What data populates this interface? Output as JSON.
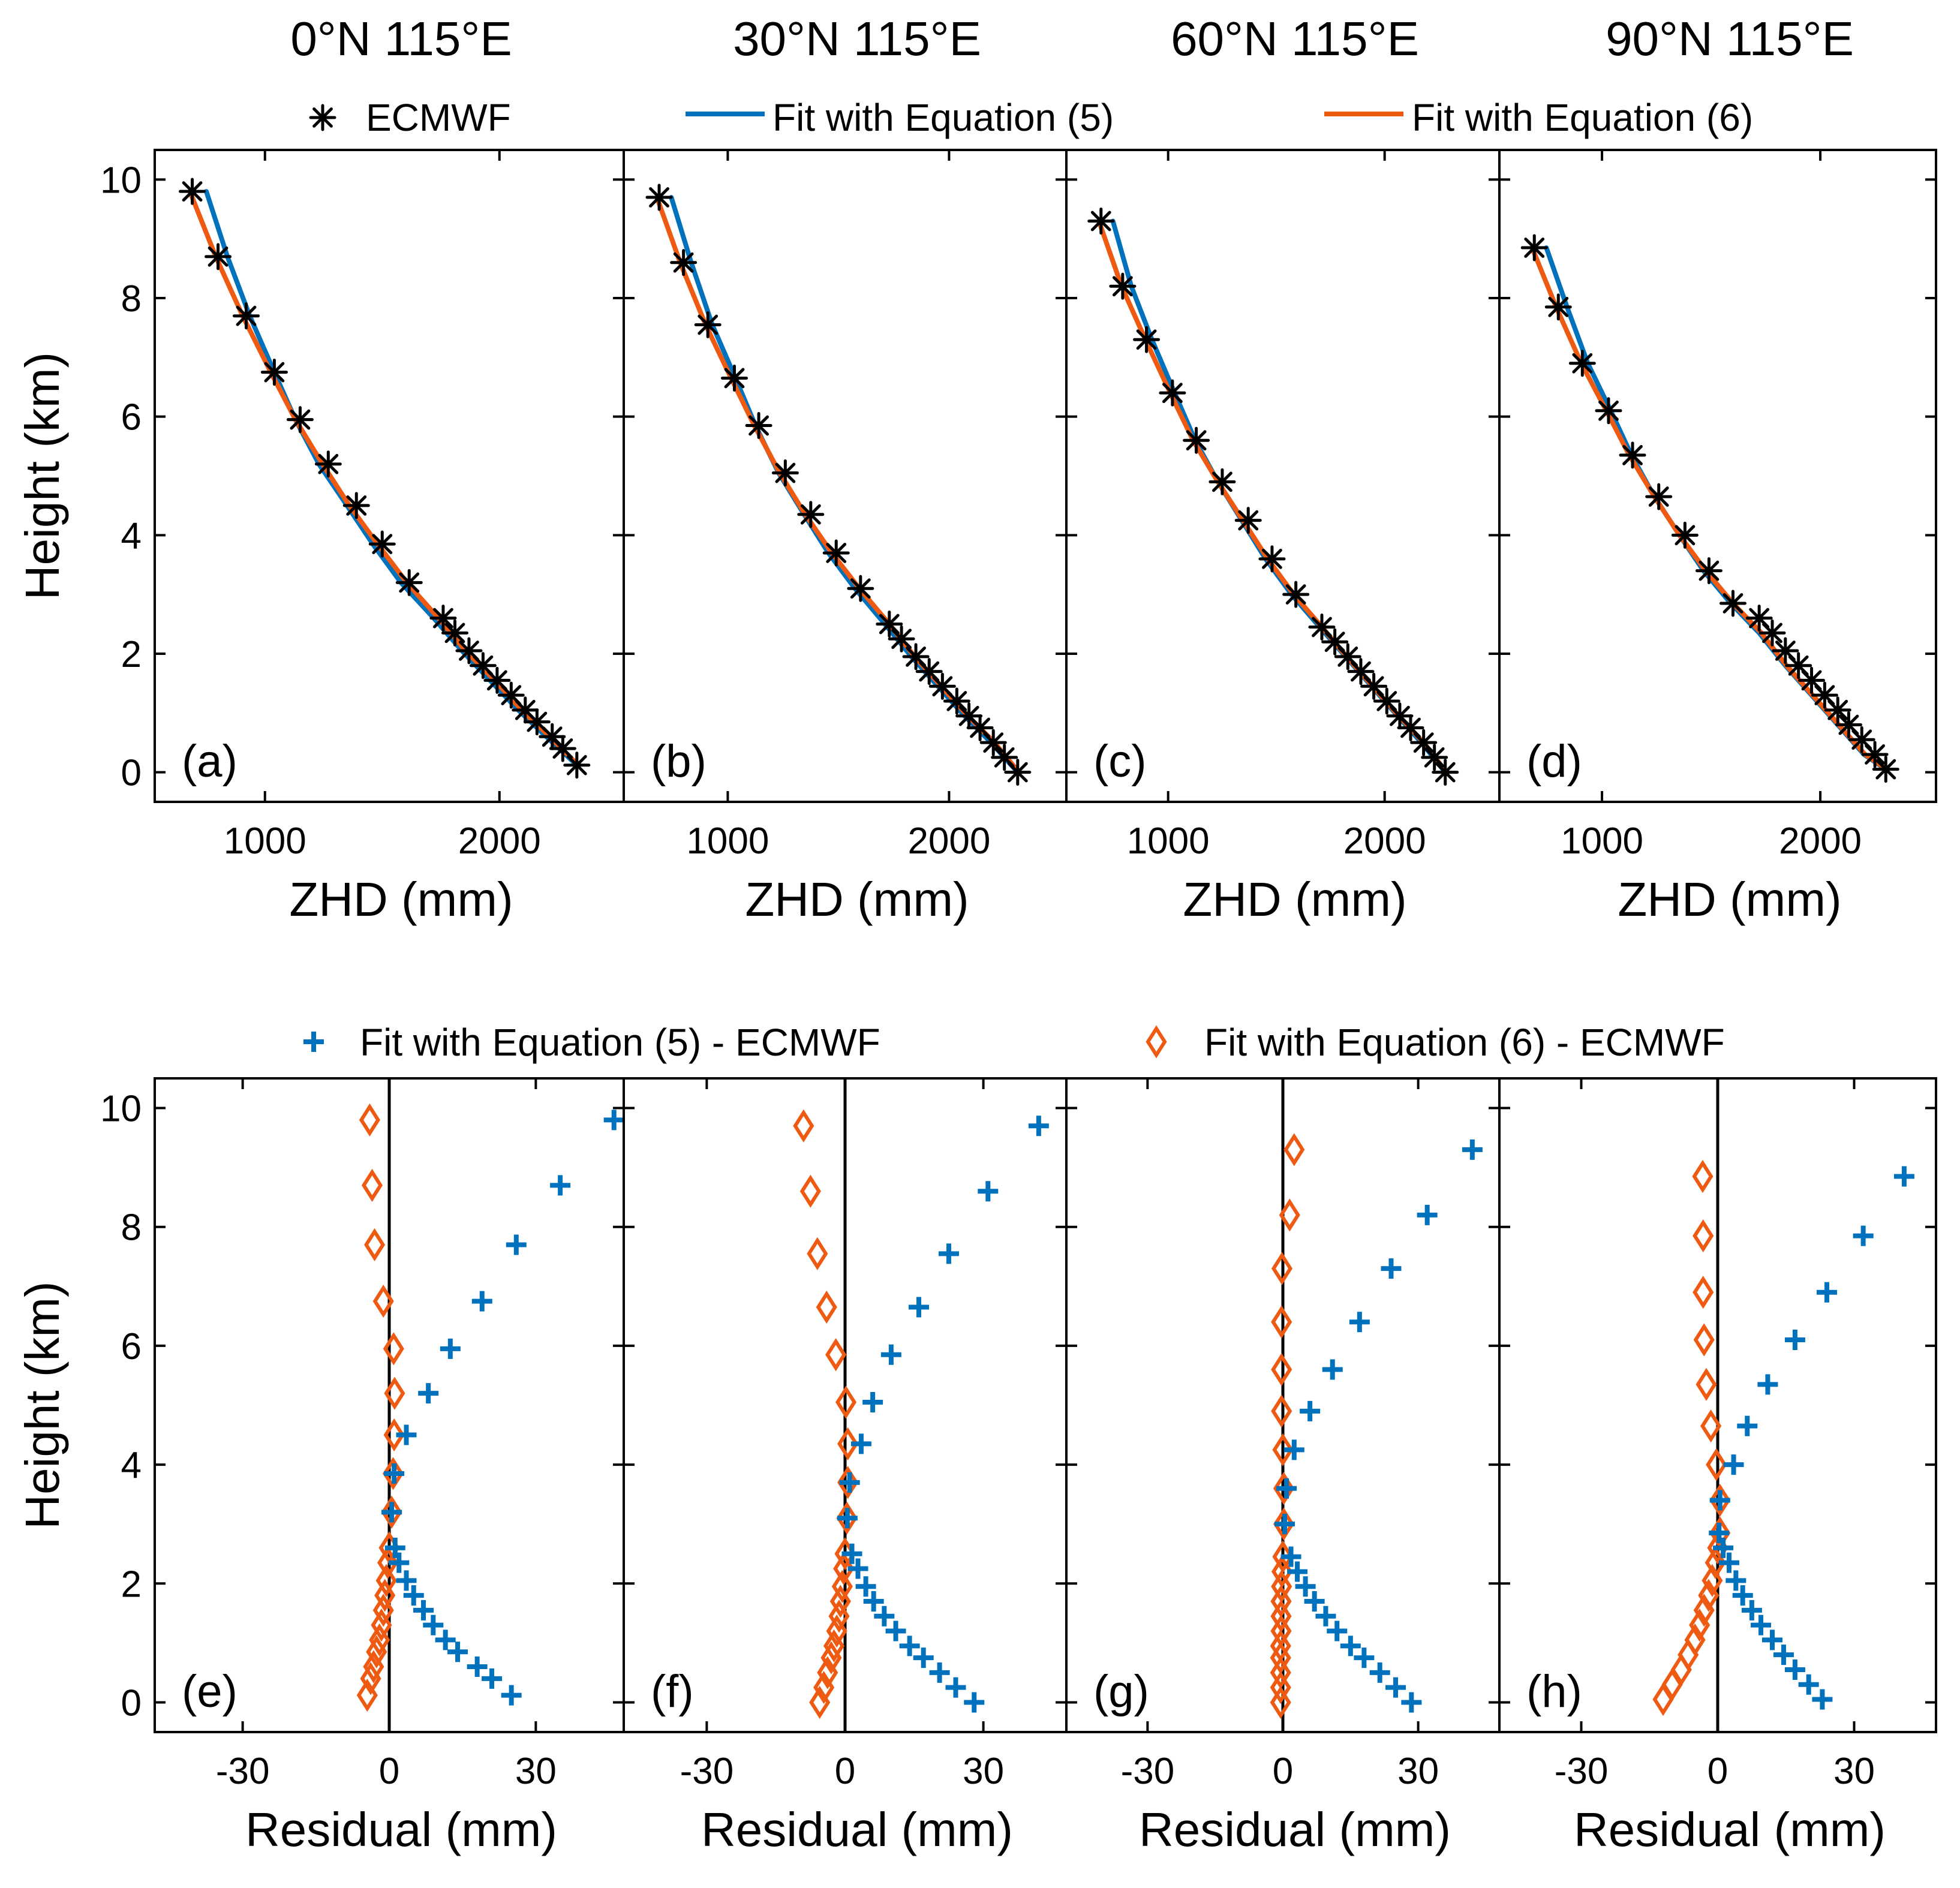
{
  "chart_data": {
    "type": "scatter",
    "legend_top": [
      {
        "label": "ECMWF",
        "marker": "asterisk",
        "color": "#000000"
      },
      {
        "label": "Fit with Equation (5)",
        "marker": "line",
        "color": "#0072BD"
      },
      {
        "label": "Fit with Equation (6)",
        "marker": "line",
        "color": "#EE5A12"
      }
    ],
    "legend_bottom": [
      {
        "label": "Fit with Equation (5) - ECMWF",
        "marker": "plus",
        "color": "#0072BD"
      },
      {
        "label": "Fit with Equation (6) - ECMWF",
        "marker": "diamond",
        "color": "#EE5A12"
      }
    ],
    "top_row": {
      "ylabel": "Height (km)",
      "xlabel": "ZHD (mm)",
      "xlim": [
        530,
        2530
      ],
      "ylim": [
        -0.5,
        10.5
      ],
      "xticks": [
        1000,
        2000
      ],
      "yticks": [
        0,
        2,
        4,
        6,
        8,
        10
      ],
      "panels": [
        {
          "title": "0°N 115°E",
          "label": "(a)",
          "heights": [
            0.12,
            0.4,
            0.6,
            0.85,
            1.05,
            1.3,
            1.55,
            1.8,
            2.05,
            2.35,
            2.6,
            3.2,
            3.85,
            4.5,
            5.2,
            5.95,
            6.75,
            7.7,
            8.7,
            9.8
          ],
          "zhd": [
            2330,
            2270,
            2225,
            2160,
            2110,
            2050,
            1990,
            1930,
            1870,
            1810,
            1760,
            1615,
            1500,
            1390,
            1270,
            1150,
            1040,
            920,
            800,
            690
          ],
          "eq5_line": {
            "h": [
              9.8,
              8.7,
              7.7,
              6.75,
              5.95,
              5.2,
              4.5,
              3.85,
              3.2,
              2.6,
              2.05,
              1.55,
              1.05,
              0.6,
              0.12
            ],
            "zhd": [
              750,
              840,
              935,
              1040,
              1130,
              1230,
              1350,
              1460,
              1580,
              1720,
              1840,
              1960,
              2080,
              2200,
              2330
            ]
          },
          "eq6_line": {
            "h": [
              9.8,
              8.7,
              7.7,
              6.75,
              5.95,
              5.2,
              4.5,
              3.85,
              3.2,
              2.6,
              2.05,
              1.55,
              1.05,
              0.6,
              0.12
            ],
            "zhd": [
              680,
              790,
              905,
              1025,
              1130,
              1245,
              1360,
              1480,
              1605,
              1740,
              1855,
              1980,
              2095,
              2215,
              2335
            ]
          }
        },
        {
          "title": "30°N 115°E",
          "label": "(b)",
          "heights": [
            0.0,
            0.25,
            0.5,
            0.75,
            0.95,
            1.2,
            1.45,
            1.7,
            1.95,
            2.25,
            2.5,
            3.1,
            3.7,
            4.35,
            5.05,
            5.85,
            6.65,
            7.55,
            8.6,
            9.7
          ],
          "zhd": [
            2310,
            2250,
            2200,
            2140,
            2090,
            2035,
            1970,
            1910,
            1850,
            1785,
            1730,
            1600,
            1490,
            1375,
            1260,
            1140,
            1030,
            910,
            800,
            690
          ],
          "eq5_line": {
            "h": [
              9.7,
              8.6,
              7.55,
              6.65,
              5.85,
              5.05,
              4.35,
              3.7,
              3.1,
              2.5,
              1.95,
              1.45,
              0.95,
              0.5,
              0.0
            ],
            "zhd": [
              745,
              835,
              930,
              1035,
              1125,
              1230,
              1345,
              1455,
              1575,
              1710,
              1830,
              1950,
              2070,
              2190,
              2310
            ]
          },
          "eq6_line": {
            "h": [
              9.7,
              8.6,
              7.55,
              6.65,
              5.85,
              5.05,
              4.35,
              3.7,
              3.1,
              2.5,
              1.95,
              1.45,
              0.95,
              0.5,
              0.0
            ],
            "zhd": [
              680,
              785,
              900,
              1015,
              1120,
              1235,
              1350,
              1470,
              1595,
              1730,
              1845,
              1965,
              2085,
              2205,
              2315
            ]
          }
        },
        {
          "title": "60°N 115°E",
          "label": "(c)",
          "heights": [
            0.0,
            0.25,
            0.5,
            0.75,
            0.95,
            1.2,
            1.45,
            1.7,
            1.95,
            2.2,
            2.45,
            3.0,
            3.6,
            4.25,
            4.9,
            5.6,
            6.4,
            7.3,
            8.2,
            9.3
          ],
          "zhd": [
            2280,
            2230,
            2180,
            2120,
            2070,
            2010,
            1950,
            1890,
            1830,
            1770,
            1710,
            1590,
            1480,
            1370,
            1250,
            1130,
            1020,
            900,
            790,
            690
          ],
          "eq5_line": {
            "h": [
              9.3,
              8.2,
              7.3,
              6.4,
              5.6,
              4.9,
              4.25,
              3.6,
              3.0,
              2.45,
              1.95,
              1.45,
              0.95,
              0.5,
              0.0
            ],
            "zhd": [
              745,
              830,
              925,
              1030,
              1125,
              1230,
              1340,
              1450,
              1570,
              1700,
              1820,
              1940,
              2060,
              2170,
              2280
            ]
          },
          "eq6_line": {
            "h": [
              9.3,
              8.2,
              7.3,
              6.4,
              5.6,
              4.9,
              4.25,
              3.6,
              3.0,
              2.45,
              1.95,
              1.45,
              0.95,
              0.5,
              0.0
            ],
            "zhd": [
              680,
              785,
              895,
              1010,
              1115,
              1230,
              1345,
              1460,
              1580,
              1710,
              1825,
              1945,
              2065,
              2180,
              2285
            ]
          }
        },
        {
          "title": "90°N 115°E",
          "label": "(d)",
          "heights": [
            0.05,
            0.3,
            0.55,
            0.8,
            1.05,
            1.3,
            1.55,
            1.8,
            2.05,
            2.35,
            2.6,
            2.85,
            3.4,
            4.0,
            4.65,
            5.35,
            6.1,
            6.9,
            7.85,
            8.85
          ],
          "zhd": [
            2300,
            2250,
            2190,
            2130,
            2080,
            2020,
            1960,
            1900,
            1840,
            1780,
            1720,
            1600,
            1490,
            1380,
            1260,
            1140,
            1030,
            910,
            800,
            690
          ],
          "eq5_line": {
            "h": [
              8.85,
              7.85,
              6.9,
              6.1,
              5.35,
              4.65,
              4.0,
              3.4,
              2.85,
              2.35,
              1.8,
              1.3,
              0.8,
              0.3,
              0.05
            ],
            "zhd": [
              745,
              840,
              935,
              1040,
              1135,
              1240,
              1355,
              1465,
              1590,
              1720,
              1840,
              1960,
              2080,
              2200,
              2300
            ]
          },
          "eq6_line": {
            "h": [
              8.85,
              7.85,
              6.9,
              6.1,
              5.35,
              4.65,
              4.0,
              3.4,
              2.85,
              2.35,
              1.8,
              1.3,
              0.8,
              0.3,
              0.05
            ],
            "zhd": [
              680,
              790,
              905,
              1020,
              1125,
              1240,
              1355,
              1475,
              1600,
              1730,
              1845,
              1965,
              2085,
              2205,
              2305
            ]
          }
        }
      ]
    },
    "bottom_row": {
      "ylabel": "Height (km)",
      "xlabel": "Residual (mm)",
      "xlim": [
        -48,
        48
      ],
      "ylim": [
        -0.5,
        10.5
      ],
      "xticks": [
        -30,
        0,
        30
      ],
      "yticks": [
        0,
        2,
        4,
        6,
        8,
        10
      ],
      "zero_line": true,
      "panels": [
        {
          "label": "(e)",
          "heights": [
            0.12,
            0.4,
            0.6,
            0.85,
            1.05,
            1.3,
            1.55,
            1.8,
            2.05,
            2.35,
            2.6,
            3.2,
            3.85,
            4.5,
            5.2,
            5.95,
            6.75,
            7.7,
            8.7,
            9.8
          ],
          "eq5_residual": [
            25,
            21,
            18,
            14,
            11.5,
            9,
            7,
            5,
            3.5,
            2,
            1.2,
            0.5,
            1,
            3.5,
            8,
            12.5,
            19,
            26,
            35,
            46
          ],
          "eq6_residual": [
            -4.5,
            -3.8,
            -3.2,
            -2.6,
            -2,
            -1.6,
            -1.2,
            -0.9,
            -0.6,
            -0.3,
            0,
            0.5,
            0.8,
            1,
            1.1,
            0.9,
            -1.2,
            -3,
            -3.5,
            -4
          ]
        },
        {
          "label": "(f)",
          "heights": [
            0.0,
            0.25,
            0.5,
            0.75,
            0.95,
            1.2,
            1.45,
            1.7,
            1.95,
            2.25,
            2.5,
            3.1,
            3.7,
            4.35,
            5.05,
            5.85,
            6.65,
            7.55,
            8.6,
            9.7
          ],
          "eq5_residual": [
            28,
            24,
            20.5,
            17,
            14,
            11,
            8.5,
            6.2,
            4.5,
            2.8,
            1.5,
            0.5,
            1,
            3.5,
            6,
            10,
            16,
            22.5,
            31,
            42
          ],
          "eq6_residual": [
            -5.5,
            -4.6,
            -3.8,
            -3,
            -2.4,
            -1.8,
            -1.3,
            -1,
            -0.6,
            -0.3,
            0,
            0.4,
            0.6,
            0.6,
            0.2,
            -2,
            -4,
            -6,
            -7.5,
            -9
          ]
        },
        {
          "label": "(g)",
          "heights": [
            0.0,
            0.25,
            0.5,
            0.75,
            0.95,
            1.2,
            1.45,
            1.7,
            1.95,
            2.2,
            2.45,
            3.0,
            3.6,
            4.25,
            4.9,
            5.6,
            6.4,
            7.3,
            8.2,
            9.3
          ],
          "eq5_residual": [
            28.5,
            25,
            21.5,
            18,
            15,
            12,
            9.5,
            7,
            5,
            3.2,
            1.8,
            0.4,
            0.8,
            2.5,
            6,
            11,
            17,
            24,
            32,
            42
          ],
          "eq6_residual": [
            -0.5,
            -0.5,
            -0.5,
            -0.5,
            -0.5,
            -0.4,
            -0.4,
            -0.4,
            -0.3,
            -0.2,
            0,
            0.2,
            0.2,
            0,
            -0.3,
            -0.3,
            -0.3,
            -0.2,
            1.5,
            2.5
          ]
        },
        {
          "label": "(h)",
          "heights": [
            0.05,
            0.3,
            0.55,
            0.8,
            1.05,
            1.3,
            1.55,
            1.8,
            2.05,
            2.35,
            2.6,
            2.85,
            3.4,
            4.0,
            4.65,
            5.35,
            6.1,
            6.9,
            7.85,
            8.85
          ],
          "eq5_residual": [
            23,
            20,
            17,
            14.5,
            12,
            9.5,
            7.5,
            5.5,
            4,
            2.5,
            1.2,
            0.3,
            0.5,
            3.5,
            6.5,
            11,
            17,
            24,
            32,
            41
          ],
          "eq6_residual": [
            -12,
            -10,
            -8,
            -6.5,
            -5,
            -4,
            -3,
            -2,
            -1.2,
            -0.5,
            0,
            0.5,
            0.5,
            -0.3,
            -1.5,
            -2.5,
            -3,
            -3.2,
            -3.2,
            -3.3
          ]
        }
      ]
    }
  }
}
